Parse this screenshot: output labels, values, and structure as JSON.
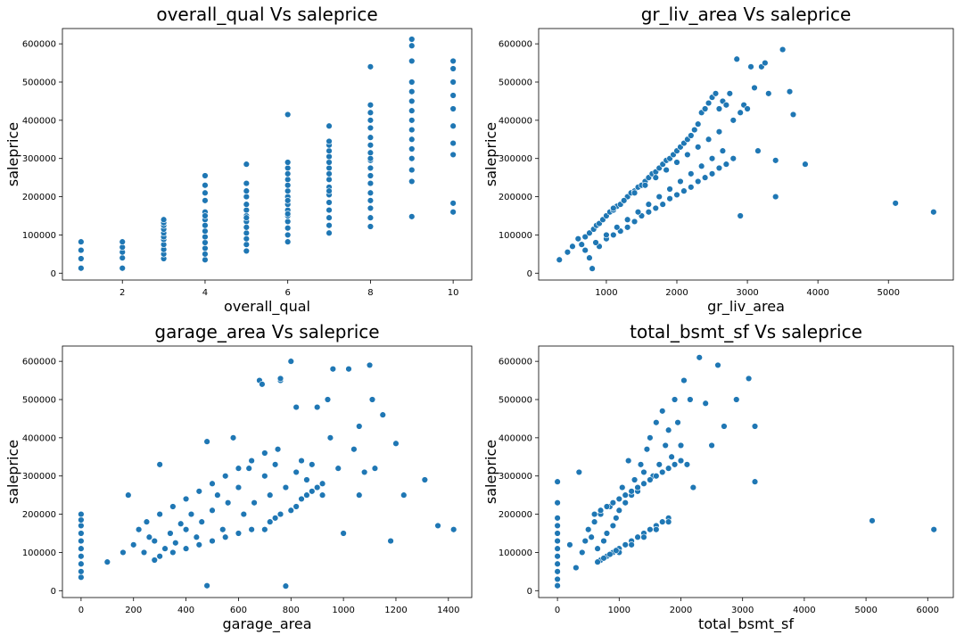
{
  "chart_data": [
    {
      "type": "scatter",
      "title": "overall_qual Vs saleprice",
      "xlabel": "overall_qual",
      "ylabel": "saleprice",
      "xlim": [
        0.55,
        10.45
      ],
      "ylim": [
        -18000,
        640000
      ],
      "xticks": [
        2,
        4,
        6,
        8,
        10
      ],
      "yticks": [
        0,
        100000,
        200000,
        300000,
        400000,
        500000,
        600000
      ],
      "x": [
        1,
        1,
        1,
        1,
        2,
        2,
        2,
        2,
        2,
        3,
        3,
        3,
        3,
        3,
        3,
        3,
        3,
        3,
        3,
        3,
        4,
        4,
        4,
        4,
        4,
        4,
        4,
        4,
        4,
        4,
        4,
        4,
        4,
        4,
        5,
        5,
        5,
        5,
        5,
        5,
        5,
        5,
        5,
        5,
        5,
        5,
        5,
        5,
        6,
        6,
        6,
        6,
        6,
        6,
        6,
        6,
        6,
        6,
        6,
        6,
        6,
        6,
        6,
        6,
        6,
        7,
        7,
        7,
        7,
        7,
        7,
        7,
        7,
        7,
        7,
        7,
        7,
        7,
        7,
        7,
        7,
        7,
        8,
        8,
        8,
        8,
        8,
        8,
        8,
        8,
        8,
        8,
        8,
        8,
        8,
        8,
        8,
        8,
        8,
        8,
        9,
        9,
        9,
        9,
        9,
        9,
        9,
        9,
        9,
        9,
        9,
        9,
        9,
        9,
        9,
        10,
        10,
        10,
        10,
        10,
        10,
        10,
        10,
        10,
        10
      ],
      "y": [
        13000,
        38000,
        60000,
        82000,
        13000,
        40000,
        55000,
        68000,
        82000,
        38000,
        50000,
        62000,
        75000,
        88000,
        95000,
        105000,
        115000,
        125000,
        132000,
        140000,
        35000,
        50000,
        65000,
        80000,
        95000,
        110000,
        125000,
        140000,
        160000,
        190000,
        210000,
        230000,
        255000,
        150000,
        58000,
        75000,
        90000,
        105000,
        120000,
        135000,
        150000,
        165000,
        180000,
        200000,
        215000,
        235000,
        285000,
        145000,
        82000,
        100000,
        118000,
        135000,
        150000,
        165000,
        180000,
        200000,
        215000,
        230000,
        245000,
        260000,
        275000,
        290000,
        415000,
        190000,
        155000,
        105000,
        125000,
        145000,
        165000,
        185000,
        205000,
        225000,
        245000,
        260000,
        275000,
        290000,
        305000,
        320000,
        335000,
        345000,
        385000,
        215000,
        122000,
        145000,
        170000,
        190000,
        210000,
        235000,
        255000,
        275000,
        295000,
        315000,
        335000,
        355000,
        380000,
        400000,
        420000,
        440000,
        540000,
        300000,
        148000,
        240000,
        270000,
        300000,
        325000,
        350000,
        375000,
        400000,
        425000,
        450000,
        475000,
        500000,
        555000,
        595000,
        612000,
        160000,
        183000,
        310000,
        340000,
        385000,
        430000,
        465000,
        500000,
        535000,
        555000
      ]
    },
    {
      "type": "scatter",
      "title": "gr_liv_area Vs saleprice",
      "xlabel": "gr_liv_area",
      "ylabel": "saleprice",
      "xlim": [
        40,
        5920
      ],
      "ylim": [
        -18000,
        640000
      ],
      "xticks": [
        1000,
        2000,
        3000,
        4000,
        5000
      ],
      "yticks": [
        0,
        100000,
        200000,
        300000,
        400000,
        500000,
        600000
      ],
      "x": [
        334,
        450,
        520,
        600,
        650,
        700,
        760,
        800,
        820,
        860,
        900,
        950,
        1000,
        1050,
        1100,
        1150,
        1200,
        1250,
        1300,
        1350,
        1400,
        1450,
        1500,
        1550,
        1600,
        1650,
        1700,
        1750,
        1800,
        1850,
        1900,
        1950,
        2000,
        2050,
        2100,
        2150,
        2200,
        2250,
        2300,
        2350,
        2400,
        2450,
        2500,
        2550,
        2600,
        2650,
        2700,
        2750,
        2800,
        2850,
        2900,
        2950,
        3000,
        3050,
        3100,
        3150,
        3200,
        3250,
        3300,
        3400,
        3500,
        3600,
        3650,
        3820,
        5100,
        5640,
        900,
        1000,
        1100,
        1200,
        1300,
        1400,
        1500,
        1600,
        1700,
        1800,
        1900,
        2000,
        2100,
        2200,
        2300,
        2400,
        2500,
        2600,
        2700,
        2800,
        700,
        850,
        1000,
        1150,
        1300,
        1450,
        1600,
        1750,
        1900,
        2050,
        2200,
        2350,
        2500,
        2650,
        1100,
        1250,
        1400,
        1550,
        1700,
        1850,
        2000,
        2150,
        2300,
        2450,
        2600,
        760,
        800,
        3400,
        2900
      ],
      "y": [
        35000,
        55000,
        70000,
        90000,
        75000,
        95000,
        105000,
        12000,
        115000,
        125000,
        130000,
        140000,
        150000,
        160000,
        165000,
        175000,
        180000,
        190000,
        200000,
        210000,
        215000,
        225000,
        230000,
        240000,
        250000,
        260000,
        265000,
        275000,
        285000,
        295000,
        300000,
        310000,
        320000,
        330000,
        340000,
        350000,
        360000,
        375000,
        390000,
        420000,
        430000,
        445000,
        460000,
        470000,
        430000,
        450000,
        440000,
        470000,
        400000,
        560000,
        420000,
        440000,
        430000,
        540000,
        485000,
        320000,
        540000,
        550000,
        470000,
        200000,
        585000,
        475000,
        415000,
        285000,
        183000,
        160000,
        70000,
        90000,
        100000,
        110000,
        120000,
        135000,
        150000,
        160000,
        170000,
        180000,
        195000,
        205000,
        215000,
        225000,
        240000,
        250000,
        260000,
        275000,
        285000,
        300000,
        60000,
        80000,
        100000,
        120000,
        140000,
        160000,
        180000,
        200000,
        220000,
        240000,
        260000,
        280000,
        300000,
        320000,
        170000,
        190000,
        210000,
        230000,
        250000,
        270000,
        290000,
        310000,
        330000,
        350000,
        370000,
        40000,
        12000,
        295000,
        150000
      ]
    },
    {
      "type": "scatter",
      "title": "garage_area Vs saleprice",
      "xlabel": "garage_area",
      "ylabel": "saleprice",
      "xlim": [
        -71,
        1489
      ],
      "ylim": [
        -18000,
        640000
      ],
      "xticks": [
        0,
        200,
        400,
        600,
        800,
        1000,
        1200,
        1400
      ],
      "yticks": [
        0,
        100000,
        200000,
        300000,
        400000,
        500000,
        600000
      ],
      "x": [
        0,
        0,
        0,
        0,
        0,
        0,
        0,
        0,
        0,
        0,
        100,
        160,
        180,
        200,
        220,
        240,
        260,
        280,
        300,
        320,
        340,
        360,
        380,
        400,
        420,
        440,
        460,
        480,
        500,
        520,
        540,
        560,
        580,
        600,
        620,
        640,
        660,
        680,
        700,
        720,
        740,
        760,
        780,
        800,
        820,
        840,
        860,
        880,
        900,
        920,
        940,
        960,
        980,
        1000,
        1020,
        1040,
        1060,
        1080,
        1100,
        1120,
        1150,
        1180,
        1200,
        1230,
        1310,
        1360,
        1420,
        480,
        780,
        820,
        700,
        720,
        740,
        760,
        800,
        820,
        840,
        860,
        880,
        900,
        920,
        280,
        300,
        350,
        400,
        450,
        500,
        550,
        600,
        650,
        250,
        300,
        350,
        400,
        450,
        500,
        550,
        600,
        650,
        700,
        750,
        950,
        1060,
        1110,
        760,
        690
      ],
      "y": [
        35000,
        50000,
        70000,
        90000,
        110000,
        130000,
        150000,
        170000,
        185000,
        200000,
        75000,
        100000,
        250000,
        120000,
        160000,
        100000,
        140000,
        130000,
        330000,
        110000,
        150000,
        125000,
        175000,
        160000,
        200000,
        140000,
        180000,
        390000,
        210000,
        250000,
        160000,
        230000,
        400000,
        270000,
        200000,
        320000,
        230000,
        550000,
        300000,
        250000,
        330000,
        550000,
        270000,
        600000,
        310000,
        340000,
        290000,
        330000,
        480000,
        250000,
        500000,
        580000,
        320000,
        150000,
        580000,
        370000,
        250000,
        310000,
        590000,
        320000,
        460000,
        130000,
        385000,
        250000,
        290000,
        170000,
        160000,
        13000,
        12000,
        480000,
        160000,
        180000,
        190000,
        200000,
        210000,
        220000,
        240000,
        250000,
        260000,
        270000,
        280000,
        80000,
        90000,
        100000,
        110000,
        120000,
        130000,
        140000,
        150000,
        160000,
        180000,
        200000,
        220000,
        240000,
        260000,
        280000,
        300000,
        320000,
        340000,
        360000,
        370000,
        400000,
        430000,
        500000,
        555000,
        540000
      ]
    },
    {
      "type": "scatter",
      "title": "total_bsmt_sf Vs saleprice",
      "xlabel": "total_bsmt_sf",
      "ylabel": "saleprice",
      "xlim": [
        -305,
        6415
      ],
      "ylim": [
        -18000,
        640000
      ],
      "xticks": [
        0,
        1000,
        2000,
        3000,
        4000,
        5000,
        6000
      ],
      "yticks": [
        0,
        100000,
        200000,
        300000,
        400000,
        500000,
        600000
      ],
      "x": [
        0,
        0,
        0,
        0,
        0,
        0,
        0,
        0,
        0,
        0,
        0,
        0,
        200,
        300,
        350,
        400,
        450,
        500,
        550,
        600,
        650,
        700,
        750,
        800,
        850,
        900,
        950,
        1000,
        1050,
        1100,
        1150,
        1200,
        1250,
        1300,
        1350,
        1400,
        1450,
        1500,
        1550,
        1600,
        1650,
        1700,
        1750,
        1800,
        1850,
        1900,
        1950,
        2000,
        2050,
        2100,
        2150,
        2200,
        2300,
        2400,
        2500,
        2600,
        2700,
        2900,
        3100,
        3200,
        3200,
        5100,
        6100,
        700,
        800,
        900,
        1000,
        1100,
        1200,
        1300,
        1400,
        1500,
        1600,
        1700,
        1800,
        600,
        700,
        800,
        900,
        1000,
        1100,
        1200,
        1300,
        1400,
        1500,
        1600,
        1700,
        1800,
        1900,
        2000,
        1000,
        1200,
        1400,
        1600,
        1800,
        650,
        750,
        850,
        950
      ],
      "y": [
        13000,
        30000,
        50000,
        70000,
        90000,
        110000,
        130000,
        150000,
        170000,
        190000,
        230000,
        285000,
        120000,
        60000,
        310000,
        100000,
        130000,
        160000,
        140000,
        180000,
        110000,
        200000,
        130000,
        150000,
        220000,
        170000,
        190000,
        210000,
        270000,
        230000,
        340000,
        250000,
        290000,
        260000,
        330000,
        310000,
        370000,
        400000,
        300000,
        440000,
        330000,
        470000,
        380000,
        420000,
        350000,
        500000,
        440000,
        380000,
        550000,
        330000,
        500000,
        270000,
        610000,
        490000,
        380000,
        590000,
        430000,
        500000,
        555000,
        285000,
        430000,
        183000,
        160000,
        80000,
        90000,
        100000,
        110000,
        120000,
        130000,
        140000,
        150000,
        160000,
        170000,
        180000,
        190000,
        200000,
        210000,
        220000,
        230000,
        240000,
        250000,
        260000,
        270000,
        280000,
        290000,
        300000,
        310000,
        320000,
        330000,
        340000,
        100000,
        120000,
        140000,
        160000,
        180000,
        75000,
        85000,
        95000,
        105000
      ]
    }
  ]
}
